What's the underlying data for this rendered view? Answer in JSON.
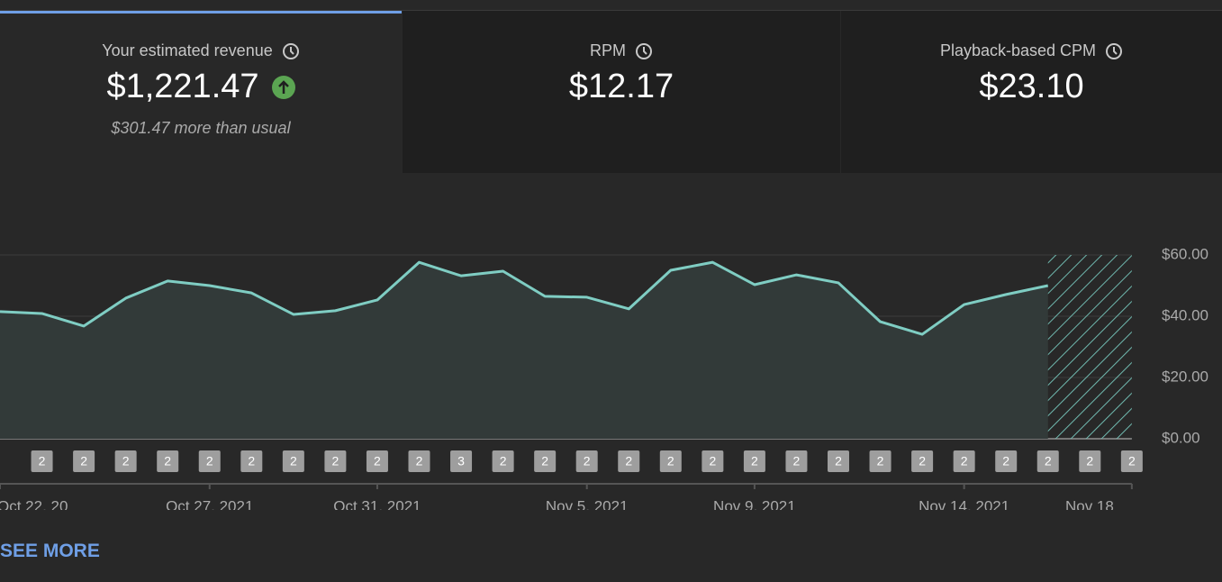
{
  "cards": [
    {
      "title": "Your estimated revenue",
      "value": "$1,221.47",
      "note": "$301.47 more than usual"
    },
    {
      "title": "RPM",
      "value": "$12.17"
    },
    {
      "title": "Playback-based CPM",
      "value": "$23.10"
    }
  ],
  "chart_data": {
    "type": "line",
    "categories": [
      "Oct 22, 20",
      null,
      null,
      null,
      null,
      "Oct 27, 2021",
      null,
      null,
      null,
      "Oct 31, 2021",
      null,
      null,
      null,
      null,
      "Nov 5, 2021",
      null,
      null,
      null,
      "Nov 9, 2021",
      null,
      null,
      null,
      null,
      "Nov 14, 2021",
      null,
      null,
      null,
      "Nov 18"
    ],
    "values": [
      41.5,
      40.9,
      36.8,
      45.9,
      51.5,
      50.0,
      47.6,
      40.6,
      41.8,
      45.3,
      57.6,
      53.2,
      54.7,
      46.5,
      46.2,
      42.4,
      55.0,
      57.6,
      50.3,
      53.5,
      50.9,
      38.2,
      34.1,
      43.8,
      47.1,
      50.0,
      null,
      null
    ],
    "markers": [
      null,
      2,
      2,
      2,
      2,
      2,
      2,
      2,
      2,
      2,
      2,
      3,
      2,
      2,
      2,
      2,
      2,
      2,
      2,
      2,
      2,
      2,
      2,
      2,
      2,
      2,
      2,
      2
    ],
    "color": "#7fcdc3",
    "ylim": [
      0,
      60
    ],
    "yticks": [
      {
        "value": 0,
        "label": "$0.00"
      },
      {
        "value": 20,
        "label": "$20.00"
      },
      {
        "value": 40,
        "label": "$40.00"
      },
      {
        "value": 60,
        "label": "$60.00"
      }
    ],
    "grid": true
  },
  "link": "SEE MORE"
}
